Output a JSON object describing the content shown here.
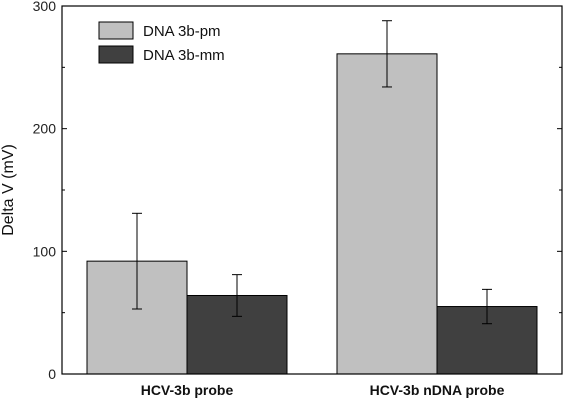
{
  "chart_data": {
    "type": "bar",
    "title": "",
    "xlabel": "",
    "ylabel": "Delta V (mV)",
    "ylim": [
      0,
      300
    ],
    "yticks": [
      0,
      100,
      200,
      300
    ],
    "categories": [
      "HCV-3b probe",
      "HCV-3b nDNA probe"
    ],
    "series": [
      {
        "name": "DNA 3b-pm",
        "color": "#c0c0c0",
        "values": [
          92,
          261
        ],
        "errors": [
          39,
          27
        ]
      },
      {
        "name": "DNA 3b-mm",
        "color": "#404040",
        "values": [
          64,
          55
        ],
        "errors": [
          17,
          14
        ]
      }
    ],
    "grid": false,
    "legend_position": "top-left"
  }
}
